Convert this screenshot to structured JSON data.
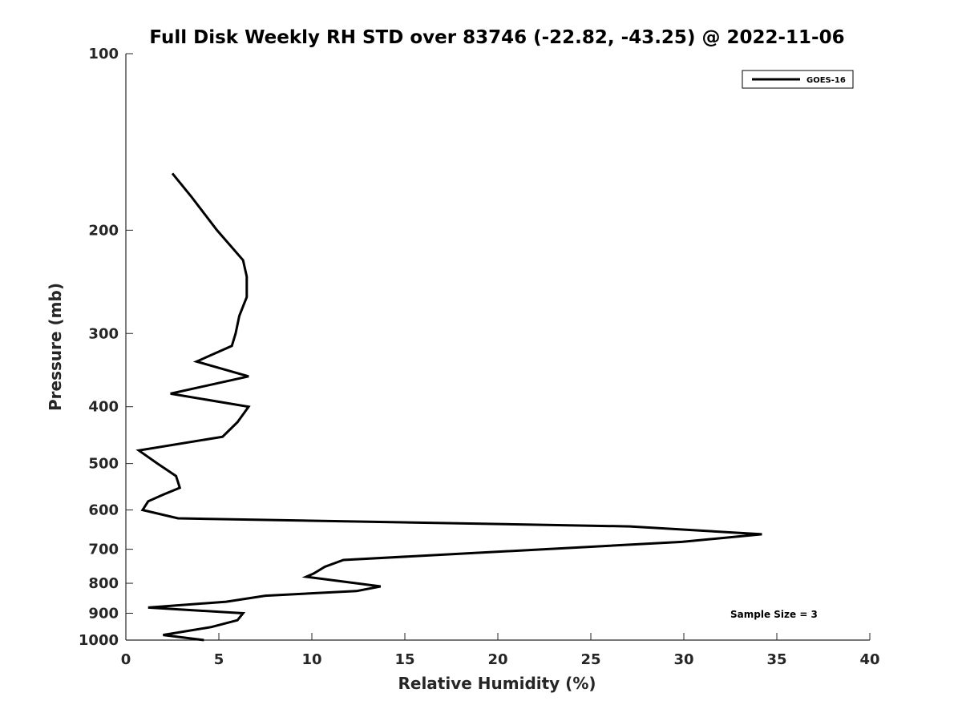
{
  "chart_data": {
    "type": "line",
    "title": "Full Disk Weekly RH STD over 83746 (-22.82, -43.25) @ 2022-11-06",
    "xlabel": "Relative Humidity (%)",
    "ylabel": "Pressure (mb)",
    "xlim": [
      0,
      40
    ],
    "ylim": [
      100,
      1000
    ],
    "y_scale": "log",
    "y_reversed": true,
    "x_ticks": [
      0,
      5,
      10,
      15,
      20,
      25,
      30,
      35,
      40
    ],
    "y_ticks": [
      100,
      200,
      300,
      400,
      500,
      600,
      700,
      800,
      900,
      1000
    ],
    "grid": false,
    "legend_position": "top-right",
    "annotation": "Sample Size = 3",
    "series": [
      {
        "name": "GOES-16",
        "color": "#000000",
        "points": [
          [
            4.2,
            1000
          ],
          [
            2.0,
            980
          ],
          [
            4.6,
            950
          ],
          [
            6.0,
            925
          ],
          [
            6.3,
            900
          ],
          [
            1.2,
            880
          ],
          [
            5.4,
            860
          ],
          [
            7.5,
            840
          ],
          [
            12.4,
            825
          ],
          [
            13.7,
            810
          ],
          [
            9.7,
            780
          ],
          [
            10.1,
            770
          ],
          [
            10.7,
            750
          ],
          [
            11.7,
            730
          ],
          [
            29.9,
            680
          ],
          [
            34.2,
            660
          ],
          [
            27.1,
            640
          ],
          [
            2.8,
            620
          ],
          [
            0.9,
            600
          ],
          [
            1.2,
            580
          ],
          [
            2.0,
            565
          ],
          [
            2.9,
            550
          ],
          [
            2.7,
            525
          ],
          [
            1.7,
            500
          ],
          [
            0.7,
            475
          ],
          [
            5.2,
            450
          ],
          [
            6.0,
            425
          ],
          [
            6.6,
            400
          ],
          [
            2.4,
            380
          ],
          [
            6.6,
            355
          ],
          [
            3.8,
            335
          ],
          [
            5.7,
            315
          ],
          [
            5.9,
            300
          ],
          [
            6.1,
            280
          ],
          [
            6.5,
            260
          ],
          [
            6.5,
            240
          ],
          [
            6.3,
            225
          ],
          [
            4.9,
            200
          ],
          [
            3.5,
            175
          ],
          [
            2.5,
            160
          ]
        ]
      }
    ]
  }
}
